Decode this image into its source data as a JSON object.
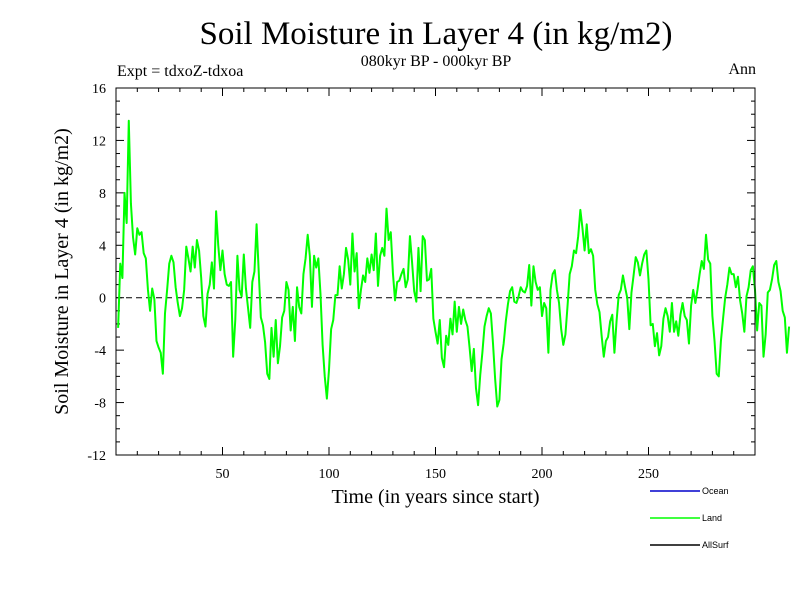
{
  "header": {
    "title": "Soil Moisture in Layer 4 (in kg/m2)",
    "subtitle": "080kyr BP - 000kyr BP",
    "expt": "Expt = tdxoZ-tdxoa",
    "period": "Ann"
  },
  "chart_data": {
    "type": "line",
    "title": "Soil Moisture in Layer 4 (in kg/m2)",
    "xlabel": "Time (in years since start)",
    "ylabel": "Soil Moisture in Layer 4 (in kg/m2)",
    "xlim": [
      0,
      300
    ],
    "ylim": [
      -12,
      16
    ],
    "xticks": [
      50,
      100,
      150,
      200,
      250
    ],
    "yticks": [
      16,
      12,
      8,
      4,
      0,
      -4,
      -8,
      -12
    ],
    "zero_line": "dashed",
    "legend_position": "bottom-right",
    "series": [
      {
        "name": "Land",
        "color": "#00ff00",
        "x_start": 1,
        "x_step": 1,
        "values": [
          -2.3,
          2.6,
          1.5,
          8.0,
          5.7,
          13.5,
          7.2,
          4.6,
          3.3,
          5.3,
          4.8,
          5.0,
          3.4,
          3.0,
          0.6,
          -1.0,
          0.7,
          -0.1,
          -3.3,
          -3.8,
          -4.2,
          -5.8,
          -1.2,
          0.6,
          2.6,
          3.2,
          2.7,
          0.8,
          -0.4,
          -1.4,
          -0.8,
          0.6,
          3.9,
          3.0,
          2.0,
          3.9,
          2.3,
          4.4,
          3.6,
          1.5,
          -1.4,
          -2.2,
          0.3,
          1.0,
          2.7,
          0.7,
          6.6,
          4.0,
          2.1,
          3.6,
          1.8,
          1.0,
          0.9,
          1.2,
          -4.5,
          -1.7,
          3.2,
          0.6,
          0.1,
          3.3,
          0.7,
          -0.8,
          -2.3,
          1.2,
          2.0,
          5.6,
          2.0,
          -1.5,
          -2.1,
          -3.4,
          -5.8,
          -6.2,
          -2.3,
          -4.5,
          -1.7,
          -5.0,
          -3.7,
          -1.5,
          -1.0,
          1.2,
          0.6,
          -2.5,
          -0.7,
          -3.3,
          0.8,
          -0.7,
          -1.2,
          1.8,
          3.0,
          4.8,
          3.2,
          -0.7,
          3.2,
          2.3,
          3.0,
          0.3,
          -3.6,
          -6.0,
          -7.7,
          -5.5,
          -2.4,
          -1.7,
          0.2,
          0.2,
          2.4,
          0.7,
          1.8,
          3.8,
          2.9,
          1.0,
          4.9,
          2.0,
          3.4,
          -0.8,
          0.6,
          1.7,
          1.2,
          3.0,
          1.9,
          3.3,
          2.1,
          4.9,
          0.9,
          3.2,
          3.8,
          3.2,
          6.8,
          4.4,
          5.0,
          1.9,
          -0.2,
          1.2,
          1.3,
          1.8,
          2.2,
          0.8,
          1.4,
          4.7,
          2.7,
          0.5,
          -0.3,
          3.8,
          0.5,
          4.7,
          4.4,
          1.3,
          1.4,
          2.2,
          -1.6,
          -2.6,
          -3.5,
          -1.7,
          -4.6,
          -5.3,
          -2.9,
          -3.6,
          -1.6,
          -2.8,
          -0.3,
          -2.6,
          -0.7,
          -2.0,
          -0.9,
          -1.7,
          -2.2,
          -3.8,
          -5.6,
          -3.9,
          -6.9,
          -8.2,
          -5.9,
          -4.2,
          -2.2,
          -1.4,
          -0.8,
          -1.2,
          -3.5,
          -6.2,
          -8.3,
          -7.8,
          -4.7,
          -3.5,
          -1.8,
          -0.5,
          0.5,
          0.8,
          -0.3,
          -0.4,
          0.1,
          0.8,
          0.5,
          0.4,
          0.9,
          2.5,
          -0.6,
          2.4,
          1.2,
          0.6,
          0.8,
          -1.4,
          -0.4,
          -0.8,
          -4.2,
          0.6,
          1.8,
          2.1,
          0.6,
          -0.4,
          -2.4,
          -3.6,
          -2.8,
          -0.6,
          1.8,
          2.4,
          3.6,
          3.4,
          4.7,
          6.7,
          5.3,
          3.6,
          5.6,
          3.4,
          3.7,
          3.2,
          0.6,
          -0.5,
          -1.1,
          -2.9,
          -4.5,
          -3.3,
          -3.0,
          -1.8,
          -1.3,
          -4.2,
          -1.8,
          0.2,
          0.6,
          1.7,
          0.8,
          0.0,
          -2.4,
          0.4,
          1.7,
          3.1,
          2.7,
          1.7,
          2.6,
          3.3,
          3.6,
          1.4,
          -2.1,
          -2.0,
          -3.7,
          -2.7,
          -4.4,
          -3.7,
          -1.6,
          -0.8,
          -1.4,
          -2.6,
          -0.4,
          -2.6,
          -1.8,
          -2.9,
          -1.3,
          -0.4,
          -1.4,
          -1.7,
          -3.5,
          -0.6,
          0.6,
          -0.4,
          0.6,
          1.8,
          2.8,
          2.2,
          4.8,
          2.9,
          2.6,
          -1.4,
          -3.3,
          -5.8,
          -6.0,
          -3.3,
          -1.6,
          0.0,
          1.0,
          2.3,
          1.8,
          1.8,
          0.8,
          1.6,
          -0.2,
          -1.2,
          -2.6,
          0.1,
          0.8,
          2.1,
          2.4,
          0.6,
          -2.5,
          -0.4,
          -0.6,
          -4.5,
          -2.8,
          0.4,
          0.6,
          1.4,
          2.5,
          2.8,
          1.2,
          0.5,
          -1.0,
          -1.5,
          -4.2,
          -2.2
        ]
      }
    ],
    "legend": [
      {
        "name": "Ocean",
        "color": "#0000cc"
      },
      {
        "name": "Land",
        "color": "#00ff00"
      },
      {
        "name": "AllSurf",
        "color": "#000000"
      }
    ]
  }
}
